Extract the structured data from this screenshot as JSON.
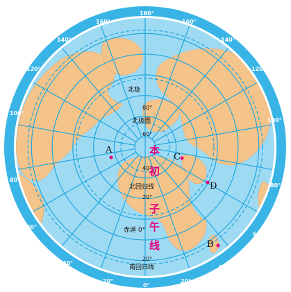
{
  "colors": {
    "ocean": "#9fdaf3",
    "land": "#f5c48a",
    "grid": "#1fa7df",
    "rim": "#39b4e6",
    "point": "#e3007f",
    "meridian_label": "#e3007f"
  },
  "map": {
    "projection": "polar azimuthal, North Pole centred",
    "north_pole_label": "北极",
    "latitudes": {
      "lat_80": "80°",
      "arctic_circle": "北极圈",
      "lat_60": "60°",
      "lat_40": "40°",
      "tropic_cancer": "北回归线",
      "lat_20": "20°",
      "equator": "赤道 0°",
      "lat_s20": "20°",
      "tropic_capricorn": "南回归线"
    },
    "prime_meridian_chars": [
      "本",
      "初",
      "子",
      "午",
      "线"
    ],
    "longitude_labels": {
      "lon_180": "180°",
      "lon_160w": "160°",
      "lon_160e": "160°",
      "lon_140w": "140°",
      "lon_140e": "140°",
      "lon_120w": "120°",
      "lon_120e": "120°",
      "lon_100w": "100°",
      "lon_100e": "100°",
      "lon_80w": "80°",
      "lon_80e": "80°",
      "lon_60w": "60°",
      "lon_60e": "60°",
      "lon_40w": "40°",
      "lon_40e": "40°",
      "lon_20w": "20°",
      "lon_20e": "20°",
      "lon_0": "0°"
    },
    "points": {
      "A": "A",
      "B": "B",
      "C": "C",
      "D": "D"
    }
  }
}
